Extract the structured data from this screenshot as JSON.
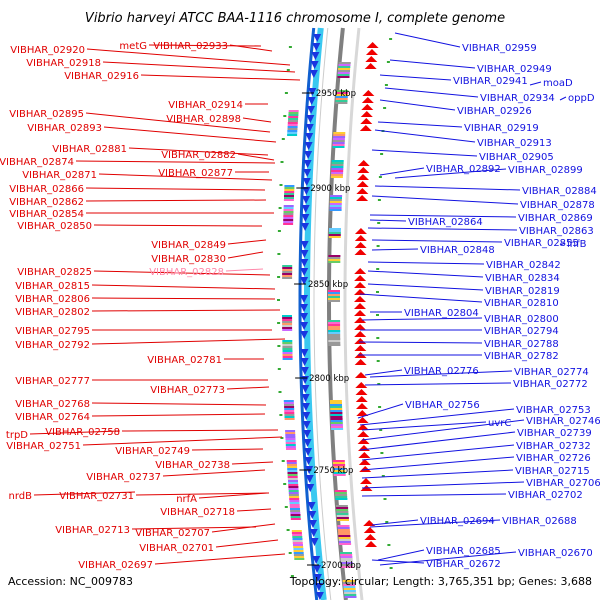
{
  "title": "Vibrio harveyi ATCC BAA-1116 chromosome I, complete genome",
  "footer": {
    "accession": "Accession: NC_009783",
    "summary": "Topology: circular; Length: 3,765,351 bp; Genes: 3,688"
  },
  "colors": {
    "forward": "#e00000",
    "reverse": "#1212e0",
    "ring_light": "#3ac8f0",
    "ring_dark": "#1060d0",
    "highlight_label": "#ff88aa"
  },
  "kbp_marks": [
    "2950 kbp",
    "2900 kbp",
    "2850 kbp",
    "2800 kbp",
    "2750 kbp",
    "2700 kbp"
  ],
  "left_labels": [
    "metG",
    "VIBHAR_02933",
    "VIBHAR_02920",
    "VIBHAR_02918",
    "VIBHAR_02916",
    "VIBHAR_02914",
    "VIBHAR_02895",
    "VIBHAR_02898",
    "VIBHAR_02893",
    "VIBHAR_02881",
    "VIBHAR_02882",
    "VIBHAR_02874",
    "VIBHAR_02877",
    "VIBHAR_02871",
    "VIBHAR_02866",
    "VIBHAR_02862",
    "VIBHAR_02854",
    "VIBHAR_02850",
    "VIBHAR_02849",
    "VIBHAR_02830",
    "VIBHAR_02825",
    "VIBHAR_02828",
    "VIBHAR_02815",
    "VIBHAR_02806",
    "VIBHAR_02802",
    "VIBHAR_02795",
    "VIBHAR_02792",
    "VIBHAR_02781",
    "VIBHAR_02777",
    "VIBHAR_02773",
    "VIBHAR_02768",
    "VIBHAR_02764",
    "trpD",
    "VIBHAR_02758",
    "VIBHAR_02751",
    "VIBHAR_02749",
    "VIBHAR_02738",
    "VIBHAR_02737",
    "nrdB",
    "VIBHAR_02731",
    "nrfA",
    "VIBHAR_02718",
    "VIBHAR_02713",
    "VIBHAR_02707",
    "VIBHAR_02701",
    "VIBHAR_02697"
  ],
  "right_labels": [
    "VIBHAR_02959",
    "VIBHAR_02949",
    "VIBHAR_02941",
    "moaD",
    "VIBHAR_02934",
    "oppD",
    "VIBHAR_02926",
    "VIBHAR_02919",
    "VIBHAR_02913",
    "VIBHAR_02905",
    "VIBHAR_02892",
    "VIBHAR_02899",
    "VIBHAR_02884",
    "VIBHAR_02878",
    "VIBHAR_02864",
    "VIBHAR_02869",
    "VIBHAR_02863",
    "VIBHAR_02848",
    "VIBHAR_02855",
    "ihfB",
    "VIBHAR_02842",
    "VIBHAR_02834",
    "VIBHAR_02819",
    "VIBHAR_02810",
    "VIBHAR_02804",
    "VIBHAR_02800",
    "VIBHAR_02794",
    "VIBHAR_02788",
    "VIBHAR_02782",
    "VIBHAR_02776",
    "VIBHAR_02774",
    "VIBHAR_02772",
    "VIBHAR_02756",
    "VIBHAR_02753",
    "uvrC",
    "VIBHAR_02746",
    "VIBHAR_02739",
    "VIBHAR_02732",
    "VIBHAR_02726",
    "VIBHAR_02715",
    "VIBHAR_02706",
    "VIBHAR_02702",
    "VIBHAR_02694",
    "VIBHAR_02688",
    "VIBHAR_02685",
    "VIBHAR_02670",
    "VIBHAR_02672"
  ]
}
